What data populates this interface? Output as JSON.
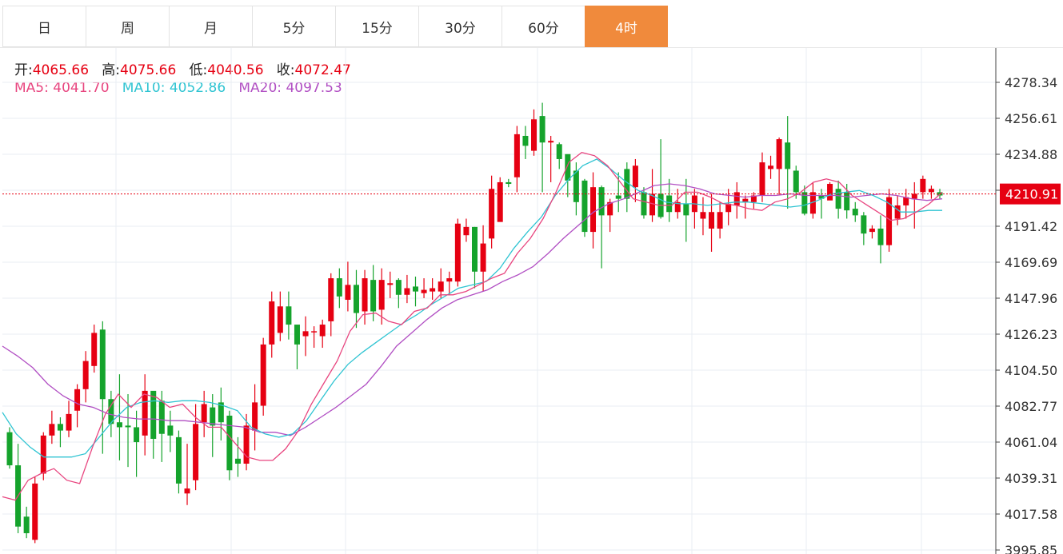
{
  "tabs": [
    {
      "label": "日",
      "active": false
    },
    {
      "label": "周",
      "active": false
    },
    {
      "label": "月",
      "active": false
    },
    {
      "label": "5分",
      "active": false
    },
    {
      "label": "15分",
      "active": false
    },
    {
      "label": "30分",
      "active": false
    },
    {
      "label": "60分",
      "active": false
    },
    {
      "label": "4时",
      "active": true
    }
  ],
  "ohlc_info": {
    "open_label": "开:",
    "open": "4065.66",
    "high_label": "高:",
    "high": "4075.66",
    "low_label": "低:",
    "low": "4040.56",
    "close_label": "收:",
    "close": "4072.47"
  },
  "ma_info": {
    "ma5_label": "MA5:",
    "ma5": "4041.70",
    "ma10_label": "MA10:",
    "ma10": "4052.86",
    "ma20_label": "MA20:",
    "ma20": "4097.53"
  },
  "colors": {
    "up": "#e60012",
    "down": "#15a32c",
    "ma5": "#e8457f",
    "ma10": "#2fc4d2",
    "ma20": "#b14fc3",
    "grid": "#e9eef3",
    "current_price": "#e60012"
  },
  "chart_data": {
    "type": "candlestick",
    "current_price": "4210.91",
    "y_ticks": [
      "4278.34",
      "4256.61",
      "4234.88",
      "4213.15",
      "4191.42",
      "4169.69",
      "4147.96",
      "4126.23",
      "4104.50",
      "4082.77",
      "4061.04",
      "4039.31",
      "4017.58",
      "3995.85"
    ],
    "ylim": [
      3995.85,
      4288
    ],
    "candles": [
      [
        4067,
        4047,
        4070,
        4045
      ],
      [
        4047,
        4010,
        4060,
        4006
      ],
      [
        4016,
        4006,
        4022,
        4003
      ],
      [
        4002,
        4036,
        4040,
        4000
      ],
      [
        4042,
        4065,
        4067,
        4038
      ],
      [
        4065,
        4072,
        4080,
        4060
      ],
      [
        4072,
        4068,
        4076,
        4058
      ],
      [
        4068,
        4078,
        4086,
        4064
      ],
      [
        4080,
        4093,
        4096,
        4070
      ],
      [
        4093,
        4110,
        4116,
        4085
      ],
      [
        4107,
        4127,
        4132,
        4103
      ],
      [
        4129,
        4087,
        4134,
        4054
      ],
      [
        4087,
        4072,
        4092,
        4064
      ],
      [
        4073,
        4070,
        4102,
        4050
      ],
      [
        4071,
        4070,
        4090,
        4046
      ],
      [
        4070,
        4061,
        4080,
        4040
      ],
      [
        4065,
        4092,
        4102,
        4053
      ],
      [
        4092,
        4063,
        4086,
        4051
      ],
      [
        4086,
        4066,
        4092,
        4049
      ],
      [
        4071,
        4065,
        4080,
        4055
      ],
      [
        4064,
        4036,
        4068,
        4030
      ],
      [
        4030,
        4033,
        4060,
        4023
      ],
      [
        4038,
        4072,
        4084,
        4032
      ],
      [
        4073,
        4084,
        4092,
        4064
      ],
      [
        4082,
        4071,
        4090,
        4052
      ],
      [
        4085,
        4073,
        4094,
        4062
      ],
      [
        4077,
        4044,
        4080,
        4038
      ],
      [
        4051,
        4048,
        4064,
        4040
      ],
      [
        4048,
        4071,
        4078,
        4044
      ],
      [
        4068,
        4085,
        4096,
        4056
      ],
      [
        4083,
        4120,
        4124,
        4077
      ],
      [
        4120,
        4146,
        4152,
        4112
      ],
      [
        4127,
        4143,
        4152,
        4122
      ],
      [
        4143,
        4132,
        4152,
        4123
      ],
      [
        4132,
        4120,
        4126,
        4105
      ],
      [
        4125,
        4128,
        4137,
        4113
      ],
      [
        4128,
        4128,
        4131,
        4118
      ],
      [
        4125,
        4132,
        4135,
        4118
      ],
      [
        4134,
        4160,
        4163,
        4125
      ],
      [
        4160,
        4149,
        4166,
        4142
      ],
      [
        4147,
        4156,
        4170,
        4140
      ],
      [
        4156,
        4139,
        4165,
        4130
      ],
      [
        4140,
        4160,
        4165,
        4132
      ],
      [
        4159,
        4140,
        4168,
        4134
      ],
      [
        4141,
        4159,
        4166,
        4132
      ],
      [
        4156,
        4157,
        4164,
        4148
      ],
      [
        4159,
        4150,
        4160,
        4142
      ],
      [
        4150,
        4154,
        4162,
        4145
      ],
      [
        4155,
        4152,
        4161,
        4143
      ],
      [
        4151,
        4153,
        4160,
        4148
      ],
      [
        4152,
        4154,
        4160,
        4147
      ],
      [
        4152,
        4158,
        4166,
        4148
      ],
      [
        4158,
        4160,
        4164,
        4150
      ],
      [
        4158,
        4193,
        4196,
        4155
      ],
      [
        4186,
        4191,
        4196,
        4182
      ],
      [
        4191,
        4164,
        4191,
        4154
      ],
      [
        4164,
        4181,
        4192,
        4152
      ],
      [
        4184,
        4214,
        4222,
        4178
      ],
      [
        4194,
        4218,
        4221,
        4198
      ],
      [
        4218,
        4217,
        4220,
        4215
      ],
      [
        4221,
        4247,
        4252,
        4212
      ],
      [
        4246,
        4240,
        4252,
        4232
      ],
      [
        4237,
        4256,
        4262,
        4234
      ],
      [
        4258,
        4242,
        4266,
        4212
      ],
      [
        4242,
        4243,
        4246,
        4218
      ],
      [
        4241,
        4232,
        4242,
        4226
      ],
      [
        4235,
        4219,
        4230,
        4209
      ],
      [
        4225,
        4206,
        4230,
        4198
      ],
      [
        4219,
        4188,
        4220,
        4185
      ],
      [
        4188,
        4215,
        4224,
        4178
      ],
      [
        4215,
        4198,
        4216,
        4166
      ],
      [
        4198,
        4206,
        4208,
        4188
      ],
      [
        4210,
        4208,
        4224,
        4200
      ],
      [
        4226,
        4208,
        4230,
        4200
      ],
      [
        4215,
        4228,
        4232,
        4206
      ],
      [
        4212,
        4198,
        4215,
        4196
      ],
      [
        4198,
        4211,
        4226,
        4194
      ],
      [
        4211,
        4197,
        4244,
        4196
      ],
      [
        4210,
        4200,
        4220,
        4194
      ],
      [
        4200,
        4206,
        4214,
        4196
      ],
      [
        4205,
        4198,
        4220,
        4182
      ],
      [
        4200,
        4210,
        4214,
        4190
      ],
      [
        4196,
        4200,
        4209,
        4186
      ],
      [
        4190,
        4200,
        4211,
        4176
      ],
      [
        4190,
        4200,
        4206,
        4184
      ],
      [
        4200,
        4205,
        4214,
        4192
      ],
      [
        4204,
        4212,
        4218,
        4196
      ],
      [
        4206,
        4208,
        4210,
        4196
      ],
      [
        4206,
        4210,
        4212,
        4202
      ],
      [
        4210,
        4230,
        4236,
        4206
      ],
      [
        4226,
        4228,
        4234,
        4220
      ],
      [
        4226,
        4244,
        4245,
        4210
      ],
      [
        4242,
        4226,
        4258,
        4202
      ],
      [
        4225,
        4212,
        4228,
        4208
      ],
      [
        4212,
        4199,
        4216,
        4198
      ],
      [
        4199,
        4212,
        4218,
        4196
      ],
      [
        4210,
        4208,
        4214,
        4196
      ],
      [
        4207,
        4217,
        4218,
        4210
      ],
      [
        4214,
        4202,
        4219,
        4196
      ],
      [
        4212,
        4201,
        4217,
        4196
      ],
      [
        4202,
        4198,
        4206,
        4194
      ],
      [
        4198,
        4187,
        4200,
        4180
      ],
      [
        4188,
        4190,
        4192,
        4184
      ],
      [
        4190,
        4180,
        4198,
        4169
      ],
      [
        4180,
        4209,
        4214,
        4176
      ],
      [
        4196,
        4204,
        4210,
        4192
      ],
      [
        4204,
        4209,
        4214,
        4196
      ],
      [
        4208,
        4211,
        4218,
        4190
      ],
      [
        4212,
        4220,
        4222,
        4208
      ],
      [
        4212,
        4214,
        4216,
        4208
      ],
      [
        4212,
        4210,
        4214,
        4208
      ]
    ],
    "ma5": [
      4028,
      4026,
      4038,
      4042,
      4045,
      4038,
      4036,
      4058,
      4078,
      4090,
      4082,
      4090,
      4088,
      4082,
      4084,
      4076,
      4070,
      4070,
      4061,
      4052,
      4050,
      4050,
      4057,
      4068,
      4084,
      4097,
      4110,
      4128,
      4138,
      4139,
      4134,
      4132,
      4140,
      4142,
      4150,
      4150,
      4152,
      4156,
      4160,
      4163,
      4175,
      4184,
      4196,
      4212,
      4230,
      4236,
      4234,
      4228,
      4218,
      4208,
      4206,
      4204,
      4204,
      4212,
      4212,
      4209,
      4205,
      4204,
      4202,
      4201,
      4206,
      4208,
      4212,
      4218,
      4220,
      4218,
      4210,
      4205,
      4200,
      4195,
      4196,
      4200,
      4205,
      4212
    ],
    "ma10": [
      4079,
      4066,
      4058,
      4052,
      4052,
      4052,
      4054,
      4064,
      4074,
      4082,
      4085,
      4086,
      4085,
      4086,
      4086,
      4085,
      4083,
      4080,
      4070,
      4066,
      4064,
      4066,
      4074,
      4086,
      4098,
      4108,
      4115,
      4121,
      4127,
      4133,
      4138,
      4144,
      4149,
      4154,
      4156,
      4158,
      4166,
      4178,
      4188,
      4197,
      4210,
      4220,
      4228,
      4232,
      4226,
      4219,
      4213,
      4210,
      4206,
      4205,
      4205,
      4204,
      4205,
      4206,
      4206,
      4205,
      4204,
      4203,
      4204,
      4207,
      4211,
      4212,
      4213,
      4210,
      4206,
      4200,
      4200,
      4201,
      4201
    ],
    "ma20": [
      4119,
      4113,
      4106,
      4096,
      4089,
      4084,
      4082,
      4078,
      4076,
      4075,
      4075,
      4074,
      4074,
      4073,
      4072,
      4071,
      4070,
      4067,
      4067,
      4065,
      4070,
      4076,
      4082,
      4089,
      4096,
      4107,
      4119,
      4127,
      4135,
      4142,
      4147,
      4150,
      4153,
      4158,
      4162,
      4167,
      4175,
      4184,
      4192,
      4200,
      4205,
      4208,
      4212,
      4216,
      4217,
      4216,
      4214,
      4211,
      4210,
      4209,
      4210,
      4210,
      4211,
      4210,
      4210,
      4210,
      4209,
      4210,
      4211,
      4210,
      4208,
      4207,
      4208
    ]
  }
}
